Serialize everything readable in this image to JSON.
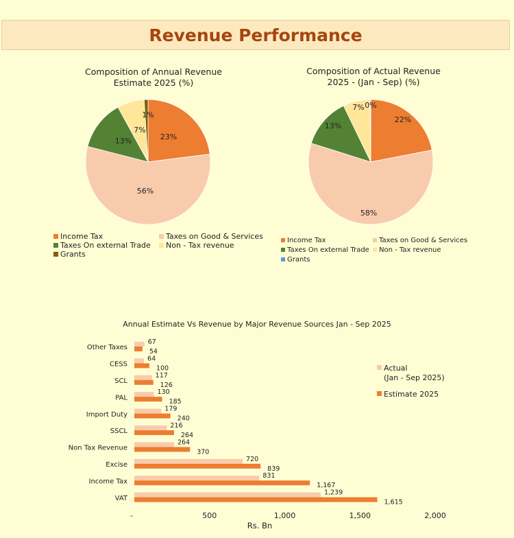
{
  "page": {
    "title": "Revenue Performance"
  },
  "colors": {
    "income_tax": "#ed7d31",
    "goods_services": "#f8cbad",
    "external_trade": "#548235",
    "non_tax": "#ffe699",
    "grants_left": "#7f6000",
    "grants_right": "#5b9bd5",
    "bar_actual": "#f8cbad",
    "bar_estimate": "#ed7d31",
    "title_text": "#a5460e",
    "title_bg": "#fde9bf"
  },
  "chart_data": [
    {
      "type": "pie",
      "title_lines": [
        "Composition of Annual  Revenue",
        "Estimate 2025 (%)"
      ],
      "slices": [
        {
          "label": "Income Tax",
          "value": 23,
          "display": "23%"
        },
        {
          "label": "Taxes on Good & Services",
          "value": 56,
          "display": "56%"
        },
        {
          "label": "Taxes On external Trade",
          "value": 13,
          "display": "13%"
        },
        {
          "label": "Non - Tax revenue",
          "value": 7,
          "display": "7%"
        },
        {
          "label": "Grants",
          "value": 1,
          "display": "1%"
        }
      ]
    },
    {
      "type": "pie",
      "title_lines": [
        "Composition of Actual Revenue",
        "2025 - (Jan - Sep) (%)"
      ],
      "slices": [
        {
          "label": "Income Tax",
          "value": 22,
          "display": "22%"
        },
        {
          "label": "Taxes on Good & Services",
          "value": 58,
          "display": "58%"
        },
        {
          "label": "Taxes On external Trade",
          "value": 13,
          "display": "13%"
        },
        {
          "label": "Non - Tax revenue",
          "value": 7,
          "display": "7%"
        },
        {
          "label": "Grants",
          "value": 0.2,
          "display": "0%"
        }
      ]
    },
    {
      "type": "bar",
      "orientation": "horizontal",
      "title": "Annual Estimate Vs Revenue by Major Revenue Sources Jan - Sep 2025",
      "xlabel": "Rs. Bn",
      "xlim": [
        0,
        2000
      ],
      "xticks": [
        0,
        500,
        1000,
        1500,
        2000
      ],
      "xtick_labels": [
        "-",
        "500",
        "1,000",
        "1,500",
        "2,000"
      ],
      "categories": [
        "Other Taxes",
        "CESS",
        "SCL",
        "PAL",
        "Import Duty",
        "SSCL",
        "Non Tax Revenue",
        "Excise",
        "Income Tax",
        "VAT"
      ],
      "series": [
        {
          "name": "Actual (Jan - Sep 2025)",
          "legend_lines": [
            "Actual",
            "(Jan - Sep 2025)"
          ],
          "values": [
            67,
            64,
            117,
            130,
            179,
            216,
            264,
            720,
            831,
            1239
          ],
          "labels": [
            "67",
            "64",
            "117",
            "130",
            "179",
            "216",
            "264",
            "720",
            "831",
            "1,239"
          ]
        },
        {
          "name": "Estimate 2025",
          "legend_lines": [
            "Estimate 2025"
          ],
          "values": [
            54,
            100,
            126,
            185,
            240,
            264,
            370,
            839,
            1167,
            1615
          ],
          "labels": [
            "54",
            "100",
            "126",
            "185",
            "240",
            "264",
            "370",
            "839",
            "1,167",
            "1,615"
          ]
        }
      ]
    }
  ]
}
